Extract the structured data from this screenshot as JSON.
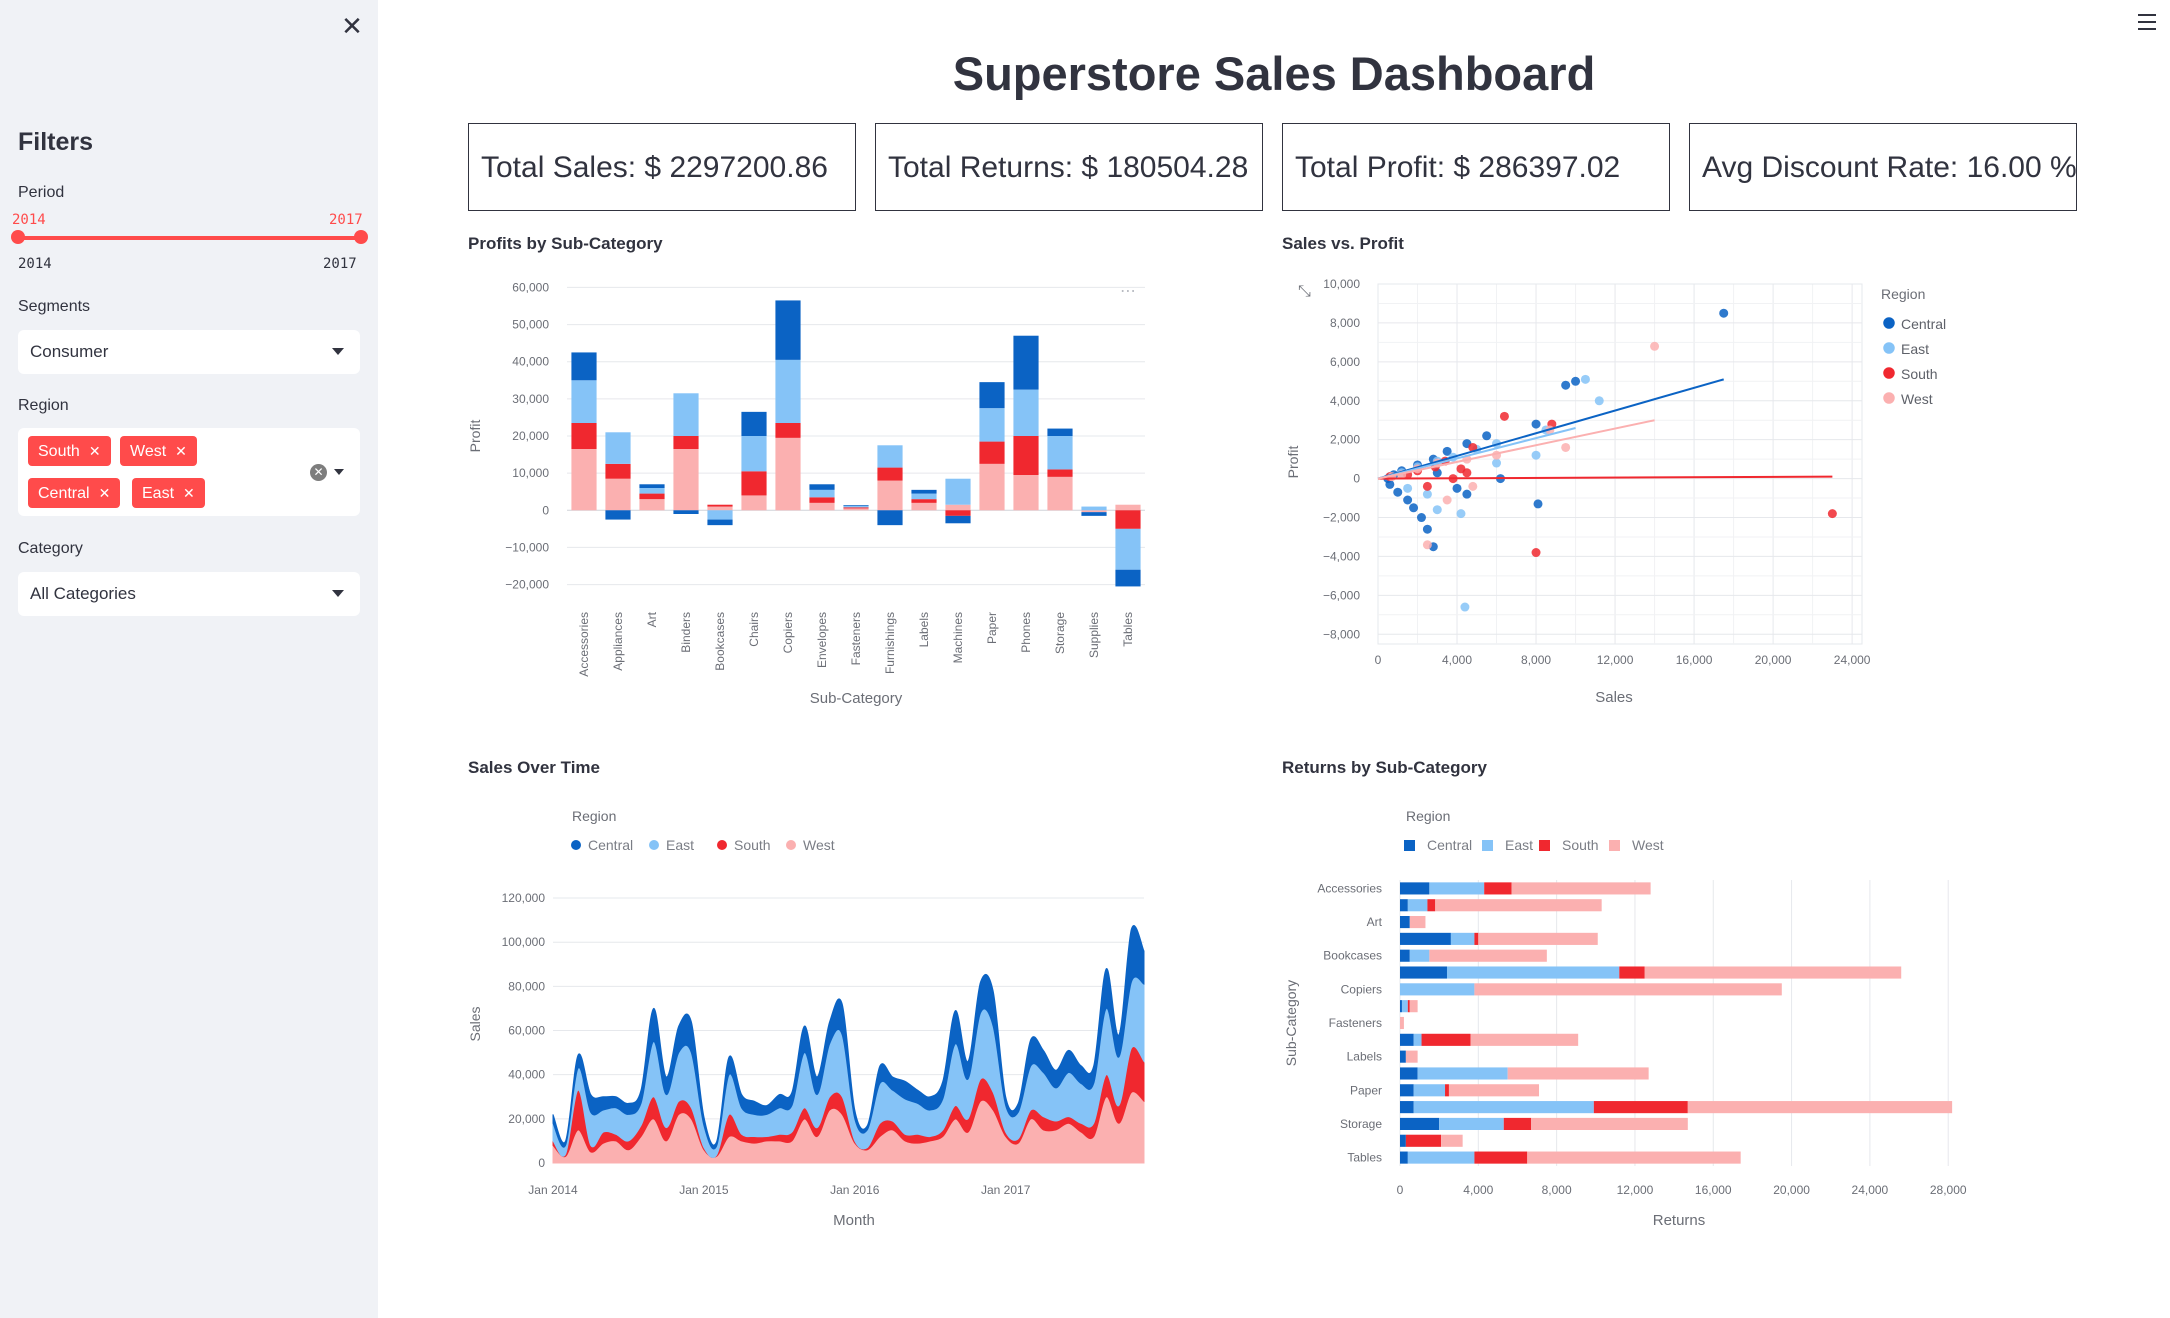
{
  "sidebar": {
    "title": "Filters",
    "period_label": "Period",
    "period_min": "2014",
    "period_max": "2017",
    "range_min": "2014",
    "range_max": "2017",
    "segments_label": "Segments",
    "segment_value": "Consumer",
    "region_label": "Region",
    "region_tags": [
      "South",
      "West",
      "Central",
      "East"
    ],
    "category_label": "Category",
    "category_value": "All Categories"
  },
  "header": {
    "title": "Superstore Sales Dashboard"
  },
  "kpis": [
    "Total Sales: $ 2297200.86",
    "Total Returns: $ 180504.28",
    "Total Profit: $ 286397.02",
    "Avg Discount Rate: 16.00 %"
  ],
  "colors": {
    "Central": "#0b63c4",
    "East": "#85c3f7",
    "South": "#f0282f",
    "West": "#fbb0b0",
    "accent": "#ff4b4b"
  },
  "chart_data": [
    {
      "id": "profit",
      "title": "Profits by Sub-Category",
      "type": "bar",
      "stacked": true,
      "xlabel": "Sub-Category",
      "ylabel": "Profit",
      "ylim": [
        -22000,
        62000
      ],
      "yticks": [
        60000,
        50000,
        40000,
        30000,
        20000,
        10000,
        0,
        -10000,
        -20000
      ],
      "ytick_labels": [
        "60,000",
        "50,000",
        "40,000",
        "30,000",
        "20,000",
        "10,000",
        "0",
        "−10,000",
        "−20,000"
      ],
      "categories": [
        "Accessories",
        "Appliances",
        "Art",
        "Binders",
        "Bookcases",
        "Chairs",
        "Copiers",
        "Envelopes",
        "Fasteners",
        "Furnishings",
        "Labels",
        "Machines",
        "Paper",
        "Phones",
        "Storage",
        "Supplies",
        "Tables"
      ],
      "series": [
        {
          "name": "West",
          "values": [
            16500,
            8500,
            3000,
            16500,
            1000,
            4000,
            19500,
            2000,
            500,
            8000,
            2000,
            1500,
            12500,
            9500,
            9000,
            -500,
            1500
          ]
        },
        {
          "name": "South",
          "values": [
            7000,
            4000,
            1500,
            3500,
            500,
            6500,
            4000,
            1500,
            300,
            3500,
            1000,
            -1500,
            6000,
            10500,
            2000,
            0,
            -5000
          ]
        },
        {
          "name": "East",
          "values": [
            11500,
            8500,
            1500,
            11500,
            -2500,
            9500,
            17000,
            2000,
            400,
            6000,
            1500,
            7000,
            9000,
            12500,
            9000,
            1000,
            -11000
          ]
        },
        {
          "name": "Central",
          "values": [
            7500,
            -2500,
            1000,
            -1000,
            -1500,
            6500,
            16000,
            1500,
            200,
            -4000,
            1000,
            -2000,
            7000,
            14500,
            2000,
            -1000,
            -4500
          ]
        }
      ]
    },
    {
      "id": "scatter",
      "title": "Sales vs. Profit",
      "type": "scatter",
      "xlabel": "Sales",
      "ylabel": "Profit",
      "xlim": [
        0,
        24500
      ],
      "ylim": [
        -8500,
        10000
      ],
      "xticks": [
        0,
        4000,
        8000,
        12000,
        16000,
        20000,
        24000
      ],
      "xtick_labels": [
        "0",
        "4,000",
        "8,000",
        "12,000",
        "16,000",
        "20,000",
        "24,000"
      ],
      "yticks": [
        10000,
        8000,
        6000,
        4000,
        2000,
        0,
        -2000,
        -4000,
        -6000,
        -8000
      ],
      "ytick_labels": [
        "10,000",
        "8,000",
        "6,000",
        "4,000",
        "2,000",
        "0",
        "−2,000",
        "−4,000",
        "−6,000",
        "−8,000"
      ],
      "legend_title": "Region",
      "legend_position": "right",
      "series": [
        {
          "name": "Central",
          "points": [
            [
              17500,
              8500
            ],
            [
              10000,
              5000
            ],
            [
              9500,
              4800
            ],
            [
              8000,
              2800
            ],
            [
              5500,
              2200
            ],
            [
              4500,
              1800
            ],
            [
              3500,
              1400
            ],
            [
              2800,
              1000
            ],
            [
              2000,
              700
            ],
            [
              1200,
              400
            ],
            [
              800,
              200
            ],
            [
              600,
              -300
            ],
            [
              1000,
              -700
            ],
            [
              1500,
              -1100
            ],
            [
              1800,
              -1500
            ],
            [
              2200,
              -2000
            ],
            [
              2500,
              -2600
            ],
            [
              2800,
              -3500
            ],
            [
              4000,
              -500
            ],
            [
              4500,
              -800
            ],
            [
              6200,
              0
            ],
            [
              8100,
              -1300
            ],
            [
              3000,
              300
            ],
            [
              500,
              0
            ]
          ],
          "trend": [
            [
              0,
              0
            ],
            [
              17500,
              5100
            ]
          ]
        },
        {
          "name": "East",
          "points": [
            [
              10500,
              5100
            ],
            [
              11200,
              4000
            ],
            [
              8500,
              2500
            ],
            [
              8000,
              1200
            ],
            [
              6000,
              1800
            ],
            [
              5000,
              1500
            ],
            [
              3800,
              1100
            ],
            [
              3000,
              900
            ],
            [
              2000,
              600
            ],
            [
              1200,
              300
            ],
            [
              600,
              100
            ],
            [
              4400,
              -6600
            ],
            [
              3000,
              -1600
            ],
            [
              4200,
              -1800
            ],
            [
              1500,
              -500
            ],
            [
              2500,
              -800
            ],
            [
              6000,
              800
            ]
          ],
          "trend": [
            [
              0,
              0
            ],
            [
              10000,
              2600
            ]
          ]
        },
        {
          "name": "South",
          "points": [
            [
              6400,
              3200
            ],
            [
              8800,
              2800
            ],
            [
              23000,
              -1800
            ],
            [
              8000,
              -3800
            ],
            [
              3400,
              900
            ],
            [
              4200,
              500
            ],
            [
              4500,
              300
            ],
            [
              3800,
              0
            ],
            [
              2900,
              600
            ],
            [
              2000,
              400
            ],
            [
              1500,
              200
            ],
            [
              600,
              100
            ],
            [
              4800,
              1600
            ],
            [
              2500,
              -400
            ]
          ],
          "trend": [
            [
              0,
              0
            ],
            [
              23000,
              100
            ]
          ]
        },
        {
          "name": "West",
          "points": [
            [
              14000,
              6800
            ],
            [
              8700,
              2500
            ],
            [
              9500,
              1600
            ],
            [
              6000,
              1200
            ],
            [
              4500,
              1000
            ],
            [
              3000,
              800
            ],
            [
              2000,
              500
            ],
            [
              1200,
              200
            ],
            [
              2500,
              -3400
            ],
            [
              3500,
              -1100
            ],
            [
              700,
              100
            ],
            [
              4800,
              -400
            ]
          ],
          "trend": [
            [
              0,
              0
            ],
            [
              14000,
              3000
            ]
          ]
        }
      ]
    },
    {
      "id": "area",
      "title": "Sales Over Time",
      "type": "area",
      "stacked": true,
      "xlabel": "Month",
      "ylabel": "Sales",
      "ylim": [
        0,
        125000
      ],
      "yticks": [
        120000,
        100000,
        80000,
        60000,
        40000,
        20000,
        0
      ],
      "ytick_labels": [
        "120,000",
        "100,000",
        "80,000",
        "60,000",
        "40,000",
        "20,000",
        "0"
      ],
      "xtick_labels": [
        "Jan 2014",
        "Jan 2015",
        "Jan 2016",
        "Jan 2017"
      ],
      "xtick_index": [
        0,
        12,
        24,
        36
      ],
      "legend_title": "Region",
      "legend_position": "top",
      "x": [
        "Jan 2014",
        "Feb 2014",
        "Mar 2014",
        "Apr 2014",
        "May 2014",
        "Jun 2014",
        "Jul 2014",
        "Aug 2014",
        "Sep 2014",
        "Oct 2014",
        "Nov 2014",
        "Dec 2014",
        "Jan 2015",
        "Feb 2015",
        "Mar 2015",
        "Apr 2015",
        "May 2015",
        "Jun 2015",
        "Jul 2015",
        "Aug 2015",
        "Sep 2015",
        "Oct 2015",
        "Nov 2015",
        "Dec 2015",
        "Jan 2016",
        "Feb 2016",
        "Mar 2016",
        "Apr 2016",
        "May 2016",
        "Jun 2016",
        "Jul 2016",
        "Aug 2016",
        "Sep 2016",
        "Oct 2016",
        "Nov 2016",
        "Dec 2016",
        "Jan 2017",
        "Feb 2017",
        "Mar 2017",
        "Apr 2017",
        "May 2017",
        "Jun 2017",
        "Jul 2017",
        "Aug 2017",
        "Sep 2017",
        "Oct 2017",
        "Nov 2017",
        "Dec 2017"
      ],
      "series": [
        {
          "name": "West",
          "values": [
            8000,
            3000,
            15000,
            5000,
            9000,
            10000,
            6000,
            12000,
            20000,
            10000,
            22000,
            20000,
            6000,
            3000,
            12000,
            10000,
            9000,
            10000,
            10000,
            10000,
            20000,
            12000,
            24000,
            22000,
            9000,
            6000,
            12000,
            15000,
            10000,
            9000,
            10000,
            12000,
            20000,
            14000,
            28000,
            24000,
            12000,
            9000,
            20000,
            15000,
            15000,
            18000,
            14000,
            12000,
            30000,
            18000,
            32000,
            28000
          ]
        },
        {
          "name": "South",
          "values": [
            2000,
            1000,
            18000,
            3000,
            5000,
            3000,
            4000,
            5000,
            10000,
            6000,
            6000,
            5000,
            1000,
            500,
            10000,
            3000,
            3000,
            2000,
            3000,
            4000,
            5000,
            4000,
            6000,
            8000,
            1000,
            1000,
            6000,
            4000,
            3000,
            4000,
            2000,
            3000,
            6000,
            6000,
            10000,
            8000,
            2000,
            2000,
            4000,
            6000,
            4000,
            3000,
            4000,
            6000,
            10000,
            8000,
            20000,
            18000
          ]
        },
        {
          "name": "East",
          "values": [
            8000,
            4000,
            10000,
            15000,
            10000,
            12000,
            12000,
            10000,
            25000,
            15000,
            22000,
            25000,
            10000,
            4000,
            18000,
            12000,
            10000,
            10000,
            12000,
            12000,
            25000,
            15000,
            24000,
            28000,
            10000,
            8000,
            18000,
            14000,
            16000,
            14000,
            12000,
            14000,
            28000,
            18000,
            30000,
            30000,
            12000,
            12000,
            20000,
            20000,
            15000,
            20000,
            18000,
            18000,
            30000,
            22000,
            30000,
            35000
          ]
        },
        {
          "name": "Central",
          "values": [
            4000,
            2000,
            6000,
            8000,
            6000,
            5000,
            5000,
            6000,
            15000,
            8000,
            12000,
            14000,
            4000,
            2000,
            8000,
            6000,
            6000,
            4000,
            6000,
            6000,
            12000,
            8000,
            10000,
            14000,
            4000,
            2000,
            8000,
            6000,
            8000,
            6000,
            6000,
            8000,
            15000,
            8000,
            14000,
            16000,
            4000,
            4000,
            12000,
            10000,
            8000,
            10000,
            8000,
            8000,
            18000,
            10000,
            24000,
            15000
          ]
        }
      ]
    },
    {
      "id": "returns",
      "title": "Returns by Sub-Category",
      "type": "bar",
      "orientation": "horizontal",
      "stacked": true,
      "xlabel": "Returns",
      "ylabel": "Sub-Category",
      "xlim": [
        0,
        28500
      ],
      "xticks": [
        0,
        4000,
        8000,
        12000,
        16000,
        20000,
        24000,
        28000
      ],
      "xtick_labels": [
        "0",
        "4,000",
        "8,000",
        "12,000",
        "16,000",
        "20,000",
        "24,000",
        "28,000"
      ],
      "legend_title": "Region",
      "legend_position": "top",
      "categories": [
        "Accessories",
        "Appliances",
        "Art",
        "Binders",
        "Bookcases",
        "Chairs",
        "Copiers",
        "Envelopes",
        "Fasteners",
        "Furnishings",
        "Labels",
        "Machines",
        "Paper",
        "Phones",
        "Storage",
        "Supplies",
        "Tables"
      ],
      "ytick_labels": [
        "Accessories",
        "",
        "Art",
        "",
        "Bookcases",
        "",
        "Copiers",
        "",
        "Fasteners",
        "",
        "Labels",
        "",
        "Paper",
        "",
        "Storage",
        "",
        "Tables"
      ],
      "series": [
        {
          "name": "Central",
          "values": [
            1500,
            400,
            500,
            2600,
            500,
            2400,
            0,
            100,
            0,
            700,
            300,
            900,
            700,
            700,
            2000,
            300,
            400
          ]
        },
        {
          "name": "East",
          "values": [
            2800,
            1000,
            0,
            1200,
            1000,
            8800,
            3800,
            300,
            0,
            400,
            0,
            4600,
            1600,
            9200,
            3300,
            0,
            3400
          ]
        },
        {
          "name": "South",
          "values": [
            1400,
            400,
            0,
            200,
            0,
            1300,
            0,
            100,
            0,
            2500,
            0,
            0,
            200,
            4800,
            1400,
            1800,
            2700
          ]
        },
        {
          "name": "West",
          "values": [
            7100,
            8500,
            800,
            6100,
            6000,
            13100,
            15700,
            400,
            200,
            5500,
            600,
            7200,
            4600,
            13500,
            8000,
            1100,
            10900
          ]
        }
      ]
    }
  ]
}
